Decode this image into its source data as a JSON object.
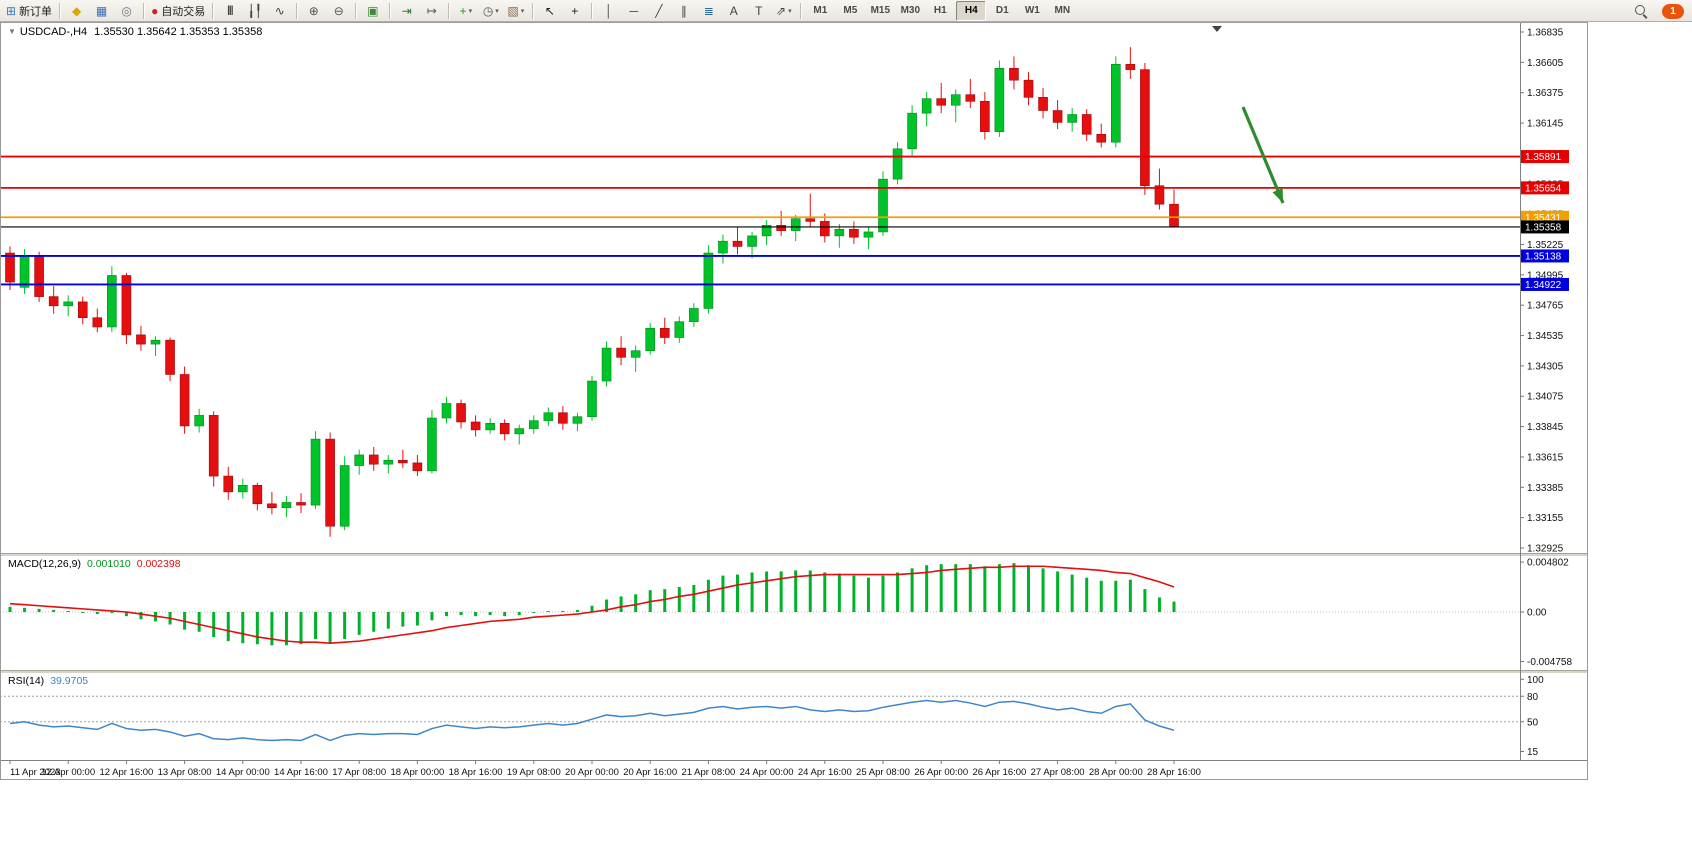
{
  "toolbar": {
    "notification_count": "1",
    "timeframes": [
      "M1",
      "M5",
      "M15",
      "M30",
      "H1",
      "H4",
      "D1",
      "W1",
      "MN"
    ],
    "active_timeframe": "H4",
    "groups": [
      [
        {
          "name": "new-order-button",
          "icon": "new-order-icon",
          "glyph": "⊞",
          "color": "#3a7abb",
          "label": "新订单"
        }
      ],
      [
        {
          "name": "profiles-button",
          "icon": "chart-profiles-icon",
          "glyph": "◆",
          "color": "#dca600"
        },
        {
          "name": "market-watch-button",
          "icon": "market-watch-icon",
          "glyph": "▦",
          "color": "#3a6fb0"
        },
        {
          "name": "navigator-button",
          "icon": "navigator-icon",
          "glyph": "◎",
          "color": "#667788"
        }
      ],
      [
        {
          "name": "autotrading-button",
          "icon": "autotrading-icon",
          "glyph": "●",
          "color": "#cc2222",
          "label": "自动交易"
        }
      ],
      [
        {
          "name": "bar-chart-button",
          "icon": "bar-chart-icon",
          "glyph": "|||",
          "cls": "bars",
          "color": "#444444"
        },
        {
          "name": "candlestick-chart-button",
          "icon": "candlestick-icon",
          "glyph": "╽╿",
          "color": "#444444"
        },
        {
          "name": "line-chart-button",
          "icon": "line-chart-icon",
          "glyph": "∿",
          "color": "#444444"
        }
      ],
      [
        {
          "name": "zoom-in-button",
          "icon": "zoom-in-icon",
          "glyph": "⊕",
          "color": "#555555"
        },
        {
          "name": "zoom-out-button",
          "icon": "zoom-out-icon",
          "glyph": "⊖",
          "color": "#555555"
        }
      ],
      [
        {
          "name": "tile-windows-button",
          "icon": "tile-windows-icon",
          "glyph": "▣",
          "color": "#3a8a3a"
        }
      ],
      [
        {
          "name": "auto-scroll-button",
          "icon": "auto-scroll-icon",
          "glyph": "⇥",
          "color": "#2a7a2a"
        },
        {
          "name": "chart-shift-button",
          "icon": "chart-shift-icon",
          "glyph": "↦",
          "color": "#555555"
        }
      ],
      [
        {
          "name": "indicators-button",
          "icon": "add-indicator-icon",
          "glyph": "+",
          "color": "#1a9a1a",
          "caret": true
        },
        {
          "name": "periods-button",
          "icon": "clock-icon",
          "glyph": "◷",
          "color": "#555555",
          "caret": true
        },
        {
          "name": "templates-button",
          "icon": "template-icon",
          "glyph": "▧",
          "color": "#8a6a4a",
          "caret": true
        }
      ],
      [
        {
          "name": "cursor-button",
          "icon": "cursor-icon",
          "glyph": "↖",
          "color": "#222222"
        },
        {
          "name": "crosshair-button",
          "icon": "crosshair-icon",
          "glyph": "+",
          "color": "#222222"
        }
      ],
      [
        {
          "name": "vertical-line-button",
          "icon": "vertical-line-icon",
          "glyph": "│",
          "color": "#444444"
        },
        {
          "name": "horizontal-line-button",
          "icon": "horizontal-line-icon",
          "glyph": "─",
          "color": "#444444"
        },
        {
          "name": "trendline-button",
          "icon": "trendline-icon",
          "glyph": "╱",
          "color": "#444444"
        },
        {
          "name": "channel-button",
          "icon": "channel-icon",
          "glyph": "∥",
          "color": "#444444"
        },
        {
          "name": "fibonacci-button",
          "icon": "fibonacci-icon",
          "glyph": "≣",
          "color": "#2a6a9a"
        },
        {
          "name": "text-button",
          "icon": "text-icon",
          "glyph": "A",
          "color": "#444444"
        },
        {
          "name": "text-label-button",
          "icon": "text-label-icon",
          "glyph": "T",
          "color": "#444444"
        },
        {
          "name": "arrows-button",
          "icon": "arrow-tools-icon",
          "glyph": "⇗",
          "color": "#444444",
          "caret": true
        }
      ]
    ]
  },
  "chart": {
    "title_symbol": "USDCAD-,H4",
    "title_ohlc": "1.35530 1.35642 1.35353 1.35358",
    "price_axis": {
      "ticks": [
        "1.36835",
        "1.36605",
        "1.36375",
        "1.36145",
        "1.35915",
        "1.35685",
        "1.35455",
        "1.35225",
        "1.34995",
        "1.34765",
        "1.34535",
        "1.34305",
        "1.34075",
        "1.33845",
        "1.33615",
        "1.33385",
        "1.33155",
        "1.32925"
      ],
      "max": 1.36835,
      "min": 1.32925
    },
    "levels": [
      {
        "label": "1.35891",
        "price": 1.35891,
        "color": "#e60000",
        "width": 1.8
      },
      {
        "label": "1.35654",
        "price": 1.35654,
        "color": "#e60000",
        "width": 1.8
      },
      {
        "label": "1.35431",
        "price": 1.35431,
        "color": "#f0a000",
        "width": 1.8
      },
      {
        "label": "1.35358",
        "price": 1.35358,
        "color": "#000000",
        "width": 1.1,
        "current": true
      },
      {
        "label": "1.35138",
        "price": 1.35138,
        "color": "#0000dd",
        "width": 1.8
      },
      {
        "label": "1.34922",
        "price": 1.34922,
        "color": "#0000dd",
        "width": 1.8
      }
    ],
    "annotation_arrow": {
      "from": [
        1243,
        107
      ],
      "to": [
        1283,
        203
      ],
      "color": "#2e8b2e"
    }
  },
  "macd": {
    "label": "MACD(12,26,9)",
    "value_main": "0.001010",
    "value_signal": "0.002398",
    "axis": [
      "0.004802",
      "0.00",
      "-0.004758"
    ],
    "histogram_color": "#00b22a",
    "signal_color": "#e01010"
  },
  "rsi": {
    "label": "RSI(14)",
    "value": "39.9705",
    "axis": [
      "100",
      "80",
      "50",
      "15"
    ],
    "levels": [
      80,
      50
    ],
    "line_color": "#3e86c8"
  },
  "time_axis": [
    "11 Apr 2023",
    "12 Apr 00:00",
    "12 Apr 16:00",
    "13 Apr 08:00",
    "14 Apr 00:00",
    "14 Apr 16:00",
    "17 Apr 08:00",
    "18 Apr 00:00",
    "18 Apr 16:00",
    "19 Apr 08:00",
    "20 Apr 00:00",
    "20 Apr 16:00",
    "21 Apr 08:00",
    "24 Apr 00:00",
    "24 Apr 16:00",
    "25 Apr 08:00",
    "26 Apr 00:00",
    "26 Apr 16:00",
    "27 Apr 08:00",
    "28 Apr 00:00",
    "28 Apr 16:00"
  ],
  "chart_data": {
    "type": "candlestick",
    "symbol": "USDCAD",
    "timeframe": "H4",
    "price_range": [
      1.32925,
      1.36835
    ],
    "candles": [
      [
        1.3516,
        1.3521,
        1.3488,
        1.3494
      ],
      [
        1.349,
        1.3519,
        1.3485,
        1.3514
      ],
      [
        1.3514,
        1.3517,
        1.3479,
        1.3483
      ],
      [
        1.3483,
        1.3491,
        1.347,
        1.3476
      ],
      [
        1.3476,
        1.3484,
        1.3468,
        1.3479
      ],
      [
        1.3479,
        1.3483,
        1.3462,
        1.3467
      ],
      [
        1.3467,
        1.3474,
        1.3456,
        1.346
      ],
      [
        1.346,
        1.3506,
        1.3456,
        1.3499
      ],
      [
        1.3499,
        1.3501,
        1.3447,
        1.3454
      ],
      [
        1.3454,
        1.3461,
        1.3442,
        1.3447
      ],
      [
        1.3447,
        1.3453,
        1.3438,
        1.345
      ],
      [
        1.345,
        1.3452,
        1.3419,
        1.3424
      ],
      [
        1.3424,
        1.343,
        1.3379,
        1.3385
      ],
      [
        1.3385,
        1.3398,
        1.338,
        1.3393
      ],
      [
        1.3393,
        1.3396,
        1.3339,
        1.3347
      ],
      [
        1.3347,
        1.3354,
        1.3329,
        1.3335
      ],
      [
        1.3335,
        1.3345,
        1.333,
        1.334
      ],
      [
        1.334,
        1.3342,
        1.3321,
        1.3326
      ],
      [
        1.3326,
        1.3335,
        1.3318,
        1.3323
      ],
      [
        1.3323,
        1.3332,
        1.3316,
        1.3327
      ],
      [
        1.3327,
        1.3334,
        1.3319,
        1.3325
      ],
      [
        1.3325,
        1.3381,
        1.3322,
        1.3375
      ],
      [
        1.3375,
        1.338,
        1.3301,
        1.3309
      ],
      [
        1.3309,
        1.3362,
        1.3306,
        1.3355
      ],
      [
        1.3355,
        1.3367,
        1.3348,
        1.3363
      ],
      [
        1.3363,
        1.3369,
        1.3351,
        1.3356
      ],
      [
        1.3356,
        1.3363,
        1.3349,
        1.3359
      ],
      [
        1.3359,
        1.3367,
        1.3353,
        1.3357
      ],
      [
        1.3357,
        1.3363,
        1.3347,
        1.3351
      ],
      [
        1.3351,
        1.3397,
        1.3349,
        1.3391
      ],
      [
        1.3391,
        1.3407,
        1.3387,
        1.3402
      ],
      [
        1.3402,
        1.3405,
        1.3383,
        1.3388
      ],
      [
        1.3388,
        1.3393,
        1.3377,
        1.3382
      ],
      [
        1.3382,
        1.3391,
        1.3379,
        1.3387
      ],
      [
        1.3387,
        1.339,
        1.3374,
        1.3379
      ],
      [
        1.3379,
        1.3386,
        1.3371,
        1.3383
      ],
      [
        1.3383,
        1.3393,
        1.3379,
        1.3389
      ],
      [
        1.3389,
        1.3399,
        1.3385,
        1.3395
      ],
      [
        1.3395,
        1.34,
        1.3382,
        1.3387
      ],
      [
        1.3387,
        1.3395,
        1.3381,
        1.3392
      ],
      [
        1.3392,
        1.3423,
        1.3389,
        1.3419
      ],
      [
        1.3419,
        1.3449,
        1.3415,
        1.3444
      ],
      [
        1.3444,
        1.3453,
        1.3431,
        1.3437
      ],
      [
        1.3437,
        1.3446,
        1.3426,
        1.3442
      ],
      [
        1.3442,
        1.3463,
        1.3439,
        1.3459
      ],
      [
        1.3459,
        1.3467,
        1.3447,
        1.3452
      ],
      [
        1.3452,
        1.3468,
        1.3448,
        1.3464
      ],
      [
        1.3464,
        1.3478,
        1.346,
        1.3474
      ],
      [
        1.3474,
        1.3522,
        1.347,
        1.3516
      ],
      [
        1.3516,
        1.353,
        1.3508,
        1.3525
      ],
      [
        1.3525,
        1.3536,
        1.3515,
        1.3521
      ],
      [
        1.3521,
        1.3532,
        1.3512,
        1.3529
      ],
      [
        1.3529,
        1.3541,
        1.3522,
        1.3537
      ],
      [
        1.3537,
        1.3548,
        1.3529,
        1.3533
      ],
      [
        1.3533,
        1.3545,
        1.3525,
        1.3542
      ],
      [
        1.3542,
        1.3561,
        1.3536,
        1.354
      ],
      [
        1.354,
        1.3546,
        1.3524,
        1.3529
      ],
      [
        1.3529,
        1.3538,
        1.352,
        1.3534
      ],
      [
        1.3534,
        1.354,
        1.3523,
        1.3528
      ],
      [
        1.3528,
        1.3536,
        1.3519,
        1.3532
      ],
      [
        1.3532,
        1.3578,
        1.3529,
        1.3572
      ],
      [
        1.3572,
        1.36,
        1.3568,
        1.3595
      ],
      [
        1.3595,
        1.3628,
        1.359,
        1.3622
      ],
      [
        1.3622,
        1.3638,
        1.3612,
        1.3633
      ],
      [
        1.3633,
        1.3645,
        1.3622,
        1.3628
      ],
      [
        1.3628,
        1.364,
        1.3615,
        1.3636
      ],
      [
        1.3636,
        1.3648,
        1.3626,
        1.3631
      ],
      [
        1.3631,
        1.3638,
        1.3602,
        1.3608
      ],
      [
        1.3608,
        1.3662,
        1.3604,
        1.3656
      ],
      [
        1.3656,
        1.3665,
        1.364,
        1.3647
      ],
      [
        1.3647,
        1.3653,
        1.3628,
        1.3634
      ],
      [
        1.3634,
        1.3641,
        1.3618,
        1.3624
      ],
      [
        1.3624,
        1.3632,
        1.361,
        1.3615
      ],
      [
        1.3615,
        1.3626,
        1.3608,
        1.3621
      ],
      [
        1.3621,
        1.3625,
        1.3601,
        1.3606
      ],
      [
        1.3606,
        1.3614,
        1.3596,
        1.36
      ],
      [
        1.36,
        1.3665,
        1.3596,
        1.3659
      ],
      [
        1.3659,
        1.3672,
        1.3648,
        1.3655
      ],
      [
        1.3655,
        1.366,
        1.356,
        1.3567
      ],
      [
        1.3567,
        1.358,
        1.3549,
        1.3553
      ],
      [
        1.3553,
        1.35642,
        1.35353,
        1.35358
      ]
    ],
    "macd_hist": [
      0.0005,
      0.0004,
      0.0003,
      0.0002,
      0.0001,
      0.0,
      -0.0002,
      -0.0001,
      -0.0004,
      -0.0007,
      -0.0009,
      -0.0012,
      -0.0017,
      -0.0019,
      -0.0024,
      -0.0028,
      -0.003,
      -0.0031,
      -0.0032,
      -0.0032,
      -0.0031,
      -0.0026,
      -0.003,
      -0.0026,
      -0.0022,
      -0.0019,
      -0.0016,
      -0.0014,
      -0.0013,
      -0.0008,
      -0.0004,
      -0.0003,
      -0.0004,
      -0.0003,
      -0.0004,
      -0.0003,
      -0.0001,
      0.0001,
      0.0001,
      0.0002,
      0.0006,
      0.0012,
      0.0015,
      0.0017,
      0.0021,
      0.0022,
      0.0024,
      0.0026,
      0.0031,
      0.0035,
      0.0036,
      0.0038,
      0.0039,
      0.0039,
      0.004,
      0.004,
      0.0038,
      0.0037,
      0.0035,
      0.0033,
      0.0035,
      0.0038,
      0.0042,
      0.0045,
      0.0046,
      0.0046,
      0.0046,
      0.0044,
      0.0046,
      0.0047,
      0.0045,
      0.0042,
      0.0039,
      0.0036,
      0.0033,
      0.003,
      0.003,
      0.0031,
      0.0022,
      0.0014,
      0.001
    ],
    "macd_signal": [
      0.0008,
      0.0007,
      0.0006,
      0.0005,
      0.0004,
      0.0003,
      0.0002,
      0.0001,
      0.0,
      -0.0002,
      -0.0004,
      -0.0006,
      -0.0009,
      -0.0012,
      -0.0015,
      -0.0018,
      -0.0021,
      -0.0024,
      -0.0026,
      -0.0028,
      -0.0029,
      -0.0029,
      -0.003,
      -0.0029,
      -0.0028,
      -0.0026,
      -0.0024,
      -0.0022,
      -0.002,
      -0.0018,
      -0.0015,
      -0.0013,
      -0.0011,
      -0.0009,
      -0.0008,
      -0.0007,
      -0.0005,
      -0.0004,
      -0.0003,
      -0.0002,
      0.0,
      0.0002,
      0.0005,
      0.0007,
      0.001,
      0.0012,
      0.0015,
      0.0017,
      0.002,
      0.0023,
      0.0026,
      0.0028,
      0.003,
      0.0032,
      0.0034,
      0.0035,
      0.0036,
      0.0036,
      0.0036,
      0.0036,
      0.0036,
      0.0036,
      0.0037,
      0.0038,
      0.004,
      0.0041,
      0.0042,
      0.0043,
      0.0043,
      0.0044,
      0.0044,
      0.0044,
      0.0043,
      0.0042,
      0.0041,
      0.004,
      0.0038,
      0.0037,
      0.0033,
      0.0029,
      0.0024
    ],
    "rsi_values": [
      48,
      50,
      46,
      44,
      45,
      43,
      41,
      48,
      42,
      40,
      41,
      38,
      33,
      36,
      30,
      29,
      31,
      29,
      28,
      29,
      28,
      35,
      28,
      34,
      36,
      35,
      36,
      36,
      35,
      42,
      46,
      44,
      42,
      44,
      43,
      44,
      46,
      48,
      46,
      48,
      53,
      58,
      56,
      57,
      60,
      57,
      59,
      61,
      66,
      68,
      65,
      67,
      68,
      66,
      68,
      64,
      62,
      64,
      62,
      63,
      67,
      70,
      73,
      75,
      73,
      75,
      72,
      68,
      73,
      74,
      71,
      67,
      64,
      66,
      62,
      60,
      68,
      71,
      52,
      45,
      39.97
    ]
  }
}
